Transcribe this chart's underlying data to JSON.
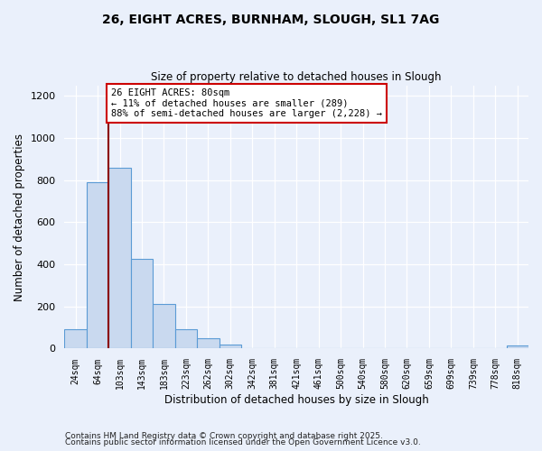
{
  "title": "26, EIGHT ACRES, BURNHAM, SLOUGH, SL1 7AG",
  "subtitle": "Size of property relative to detached houses in Slough",
  "xlabel": "Distribution of detached houses by size in Slough",
  "ylabel": "Number of detached properties",
  "bar_labels": [
    "24sqm",
    "64sqm",
    "103sqm",
    "143sqm",
    "183sqm",
    "223sqm",
    "262sqm",
    "302sqm",
    "342sqm",
    "381sqm",
    "421sqm",
    "461sqm",
    "500sqm",
    "540sqm",
    "580sqm",
    "620sqm",
    "659sqm",
    "699sqm",
    "739sqm",
    "778sqm",
    "818sqm"
  ],
  "bar_heights": [
    90,
    790,
    860,
    425,
    210,
    90,
    50,
    20,
    0,
    0,
    0,
    0,
    0,
    0,
    0,
    0,
    0,
    0,
    0,
    0,
    15
  ],
  "bar_color": "#c9d9ef",
  "bar_edge_color": "#5b9bd5",
  "vline_x": 1.5,
  "vline_color": "#8b0000",
  "annotation_text": "26 EIGHT ACRES: 80sqm\n← 11% of detached houses are smaller (289)\n88% of semi-detached houses are larger (2,228) →",
  "annotation_box_color": "#ffffff",
  "annotation_box_edge_color": "#cc0000",
  "ylim": [
    0,
    1250
  ],
  "yticks": [
    0,
    200,
    400,
    600,
    800,
    1000,
    1200
  ],
  "background_color": "#eaf0fb",
  "grid_color": "#ffffff",
  "footer1": "Contains HM Land Registry data © Crown copyright and database right 2025.",
  "footer2": "Contains public sector information licensed under the Open Government Licence v3.0."
}
